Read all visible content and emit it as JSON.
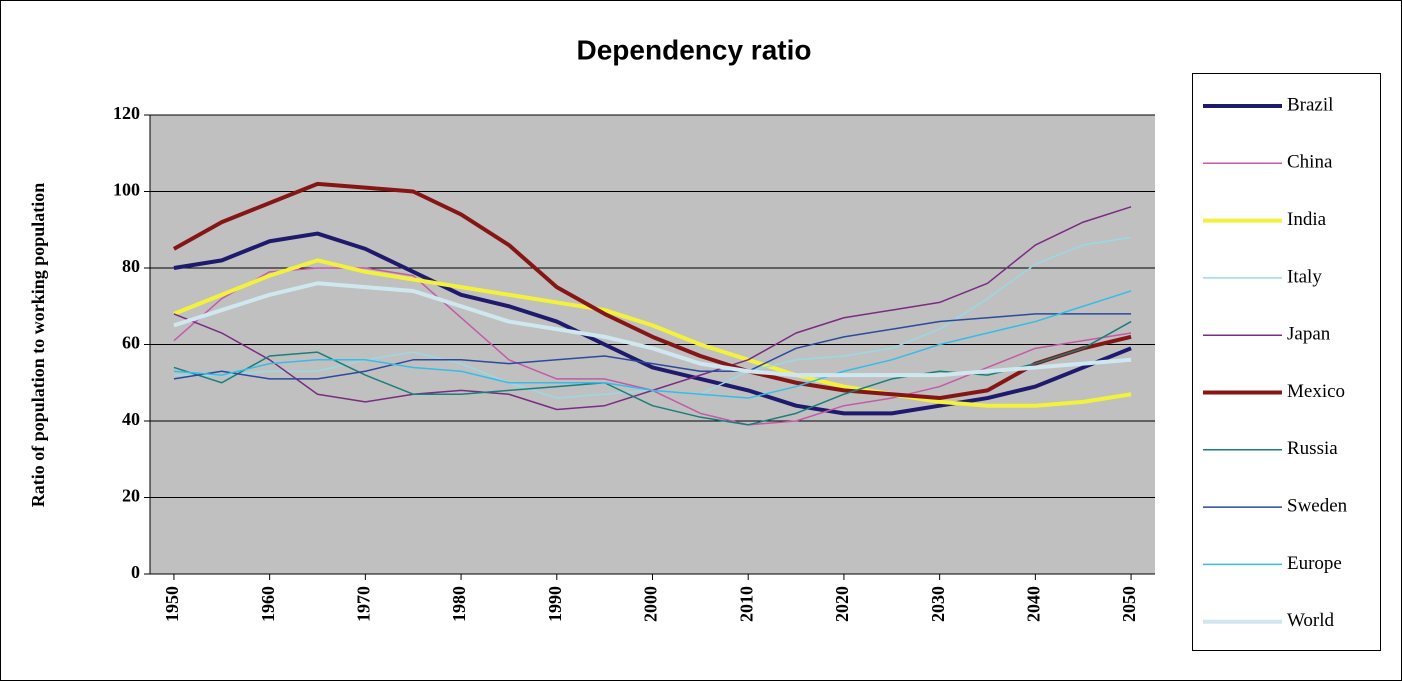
{
  "chart_data": {
    "type": "line",
    "title": "Dependency ratio",
    "y_label": "Ratio of population to working population",
    "x": [
      1950,
      1955,
      1960,
      1965,
      1970,
      1975,
      1980,
      1985,
      1990,
      1995,
      2000,
      2005,
      2010,
      2015,
      2020,
      2025,
      2030,
      2035,
      2040,
      2045,
      2050
    ],
    "xlim": [
      1947.5,
      2052.5
    ],
    "xticks": [
      1950,
      1960,
      1970,
      1980,
      1990,
      2000,
      2010,
      2020,
      2030,
      2040,
      2050
    ],
    "ylim": [
      0,
      120
    ],
    "yticks": [
      0,
      20,
      40,
      60,
      80,
      100,
      120
    ],
    "grid": true,
    "legend": "right",
    "series": [
      {
        "name": "Brazil",
        "color": "#1f1a6e",
        "width": 4,
        "values": [
          80,
          82,
          87,
          89,
          85,
          79,
          73,
          70,
          66,
          60,
          54,
          51,
          48,
          44,
          42,
          42,
          44,
          46,
          49,
          54,
          59
        ]
      },
      {
        "name": "China",
        "color": "#c45aa8",
        "width": 1.5,
        "values": [
          61,
          72,
          79,
          80,
          80,
          78,
          67,
          56,
          51,
          51,
          48,
          42,
          39,
          40,
          44,
          46,
          49,
          54,
          59,
          61,
          63
        ]
      },
      {
        "name": "India",
        "color": "#f2f23c",
        "width": 4,
        "values": [
          68,
          73,
          78,
          82,
          79,
          77,
          75,
          73,
          71,
          69,
          65,
          60,
          56,
          52,
          49,
          47,
          45,
          44,
          44,
          45,
          47
        ]
      },
      {
        "name": "Italy",
        "color": "#9ad9e4",
        "width": 1.5,
        "values": [
          52,
          52,
          53,
          53,
          56,
          58,
          55,
          50,
          46,
          47,
          48,
          47,
          53,
          56,
          57,
          59,
          64,
          72,
          81,
          86,
          88
        ]
      },
      {
        "name": "Japan",
        "color": "#7b2b82",
        "width": 1.5,
        "values": [
          68,
          63,
          56,
          47,
          45,
          47,
          48,
          47,
          43,
          44,
          48,
          52,
          56,
          63,
          67,
          69,
          71,
          76,
          86,
          92,
          96
        ]
      },
      {
        "name": "Mexico",
        "color": "#861616",
        "width": 4,
        "values": [
          85,
          92,
          97,
          102,
          101,
          100,
          94,
          86,
          75,
          68,
          62,
          57,
          53,
          50,
          48,
          47,
          46,
          48,
          55,
          59,
          62
        ]
      },
      {
        "name": "Russia",
        "color": "#1a7f7a",
        "width": 1.5,
        "values": [
          54,
          50,
          57,
          58,
          52,
          47,
          47,
          48,
          49,
          50,
          44,
          41,
          39,
          42,
          47,
          51,
          53,
          52,
          55,
          59,
          66
        ]
      },
      {
        "name": "Sweden",
        "color": "#2c4a9c",
        "width": 1.5,
        "values": [
          51,
          53,
          51,
          51,
          53,
          56,
          56,
          55,
          56,
          57,
          55,
          53,
          53,
          59,
          62,
          64,
          66,
          67,
          68,
          68,
          68
        ]
      },
      {
        "name": "Europe",
        "color": "#33bde8",
        "width": 1.5,
        "values": [
          53,
          52,
          55,
          56,
          56,
          54,
          53,
          50,
          50,
          50,
          48,
          47,
          46,
          49,
          53,
          56,
          60,
          63,
          66,
          70,
          74
        ]
      },
      {
        "name": "World",
        "color": "#cfe7ef",
        "width": 4,
        "values": [
          65,
          69,
          73,
          76,
          75,
          74,
          70,
          66,
          64,
          62,
          59,
          55,
          53,
          52,
          52,
          52,
          52,
          53,
          54,
          55,
          56
        ]
      }
    ]
  }
}
